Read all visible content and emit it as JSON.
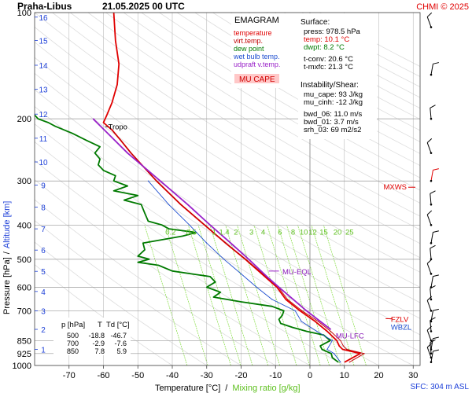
{
  "header": {
    "station": "Praha-Libus",
    "datetime": "21.05.2025 00 UTC",
    "copyright": "CHMI © 2025"
  },
  "colors": {
    "temperature": "#e00000",
    "virt_temp": "#c00000",
    "dew_point": "#007a00",
    "wet_bulb": "#1f4fd0",
    "updraft": "#9a22c9",
    "isotherm": "#bbbbbb",
    "mixing_ratio": "#7fdc3a",
    "altitude": "#1c3fd8"
  },
  "legend": {
    "title": "EMAGRAM",
    "items": [
      {
        "label": "temperature",
        "color": "#e00000"
      },
      {
        "label": "virt.temp.",
        "color": "#c00000"
      },
      {
        "label": "dew point",
        "color": "#007a00"
      },
      {
        "label": "wet bulb temp.",
        "color": "#1f4fd0"
      },
      {
        "label": "udpraft v.temp.",
        "color": "#9a22c9"
      }
    ],
    "badge": "MU CAPE"
  },
  "info": {
    "surface_title": "Surface:",
    "press": "press: 978.5 hPa",
    "temp": "temp: 10.1 °C",
    "dwpt": "dwpt: 8.2 °C",
    "tconv": "t-conv: 20.6 °C",
    "tmxfc": "t-mxfc: 21.3 °C",
    "instab_title": "Instability/Shear:",
    "mu_cape": "mu_cape: 93 J/kg",
    "mu_cinh": "mu_cinh: -12 J/kg",
    "bwd06": "bwd_06: 11.0 m/s",
    "bwd01": "bwd_01: 3.7 m/s",
    "srh03": "srh_03: 69 m2/s2"
  },
  "table": {
    "headers": [
      "p [hPa]",
      "T",
      "Td [°C]"
    ],
    "rows": [
      [
        "500",
        "-18.8",
        "-46.7"
      ],
      [
        "700",
        "-2.9",
        "-7.6"
      ],
      [
        "850",
        "7.8",
        "5.9"
      ]
    ]
  },
  "labels": {
    "tropo": "Tropo",
    "mu_eql": "MU-EQL",
    "mu_lfc": "MU-LFC",
    "mxws": "MXWS",
    "fzlv": "FZLV",
    "wbzl": "WBZL",
    "sfc": "SFC: 304 m ASL",
    "ylabel_pressure": "Pressure [hPa]",
    "ylabel_sep": "/",
    "ylabel_altitude": "Altitude [km]",
    "xlabel_temp": "Temperature [°C]",
    "xlabel_sep": "/",
    "xlabel_mix": "Mixing ratio [g/kg]"
  },
  "chart_data": {
    "type": "line",
    "y_axis": {
      "quantity": "pressure",
      "unit": "hPa",
      "scale": "log",
      "range": [
        1000,
        100
      ],
      "ticks": [
        100,
        200,
        300,
        400,
        500,
        600,
        700,
        850,
        925,
        1000
      ]
    },
    "x_axis": {
      "quantity": "temperature",
      "unit": "°C",
      "range": [
        -80,
        32
      ],
      "ticks": [
        -70,
        -60,
        -50,
        -40,
        -30,
        -20,
        -10,
        0,
        10,
        20,
        30
      ]
    },
    "altitude_ticks_km": [
      1,
      2,
      3,
      4,
      5,
      6,
      7,
      8,
      9,
      10,
      11,
      12,
      13,
      14,
      15,
      16
    ],
    "altitude_pressure": [
      900,
      790,
      700,
      617,
      541,
      471,
      410,
      356,
      308,
      265,
      227,
      194,
      165,
      141,
      120,
      103
    ],
    "mixing_ratio_labels": [
      "0.2",
      "0.5",
      "1",
      "1.4",
      "2",
      "3",
      "4",
      "6",
      "8",
      "10",
      "12",
      "15",
      "20",
      "25"
    ],
    "mixing_ratio_label_temps": [
      -40.5,
      -34.5,
      -27.8,
      -24.9,
      -21.5,
      -17.0,
      -13.6,
      -8.7,
      -4.9,
      -1.8,
      0.8,
      4.0,
      8.0,
      11.5
    ],
    "series": [
      {
        "name": "temperature",
        "p": [
          978,
          925,
          900,
          880,
          850,
          800,
          750,
          700,
          650,
          600,
          550,
          500,
          450,
          400,
          350,
          300,
          250,
          230,
          215,
          205,
          195,
          180,
          160,
          140,
          120,
          100
        ],
        "t": [
          10.1,
          14.6,
          9.5,
          8.5,
          7.8,
          5.0,
          1.5,
          -2.9,
          -7.0,
          -9.6,
          -14.0,
          -18.8,
          -24.5,
          -30.6,
          -37.5,
          -44.6,
          -52.0,
          -55.0,
          -57.5,
          -60.0,
          -59.0,
          -57.5,
          -56.0,
          -55.5,
          -56.5,
          -57.0
        ]
      },
      {
        "name": "virt.temp.",
        "p": [
          978,
          925,
          900,
          880,
          850,
          800,
          750,
          700,
          650,
          600,
          550,
          500,
          450,
          400,
          350,
          300,
          250,
          230,
          215
        ],
        "t": [
          11.5,
          15.8,
          10.7,
          9.7,
          8.9,
          6.0,
          2.4,
          -2.3,
          -6.5,
          -9.2,
          -13.7,
          -18.6,
          -24.4,
          -30.5,
          -37.4,
          -44.6,
          -52.0,
          -55.0,
          -57.5
        ]
      },
      {
        "name": "dew point",
        "p": [
          978,
          950,
          925,
          900,
          880,
          850,
          820,
          800,
          780,
          760,
          740,
          720,
          700,
          680,
          660,
          640,
          620,
          600,
          580,
          560,
          540,
          520,
          510,
          500,
          490,
          470,
          450,
          430,
          420,
          410,
          400,
          390,
          370,
          350,
          340,
          330,
          320,
          310,
          300,
          290,
          280,
          270,
          260,
          250,
          240,
          230,
          220,
          210,
          205,
          200,
          190,
          180,
          170
        ],
        "t": [
          8.2,
          6.5,
          6.2,
          3.5,
          3.0,
          5.9,
          4.0,
          -1.0,
          -5.0,
          -8.5,
          -9.0,
          -8.0,
          -7.6,
          -11.0,
          -20.0,
          -28.0,
          -26.0,
          -30.0,
          -27.5,
          -29.0,
          -40.0,
          -44.0,
          -50.0,
          -46.7,
          -50.0,
          -48.0,
          -48.5,
          -37.0,
          -33.0,
          -41.0,
          -43.0,
          -47.0,
          -48.0,
          -49.0,
          -54.0,
          -50.0,
          -57.0,
          -53.0,
          -57.0,
          -56.5,
          -60.0,
          -61.5,
          -61.0,
          -62.5,
          -61.0,
          -65.0,
          -69.0,
          -74.0,
          -76.0,
          -79.0,
          -81.0,
          -83.0,
          -86.0
        ]
      },
      {
        "name": "wet bulb temp.",
        "p": [
          978,
          925,
          900,
          850,
          800,
          750,
          700,
          650,
          600,
          550,
          500,
          450,
          400,
          350,
          300
        ],
        "t": [
          8.9,
          7.0,
          5.0,
          6.5,
          2.0,
          -2.5,
          -4.3,
          -11.0,
          -15.5,
          -20.0,
          -25.0,
          -30.0,
          -35.0,
          -41.0,
          -47.0
        ]
      },
      {
        "name": "udpraft v.temp.",
        "p": [
          790,
          700,
          600,
          560,
          500,
          450,
          400,
          350,
          300,
          250,
          200
        ],
        "t": [
          6.0,
          -1.0,
          -9.0,
          -12.5,
          -17.8,
          -23.0,
          -29.0,
          -35.5,
          -43.5,
          -53.0,
          -63.0
        ]
      }
    ],
    "wind_barbs_p": [
      110,
      150,
      200,
      250,
      300,
      350,
      400,
      450,
      500,
      550,
      600,
      650,
      700,
      750,
      800,
      850,
      900,
      925,
      950,
      978
    ],
    "mxws_p": 300,
    "fzlv_p": 700,
    "wbzl_p": 740,
    "mu_eql_p": 540,
    "mu_lfc_p": 820,
    "tropo_p": 215
  }
}
